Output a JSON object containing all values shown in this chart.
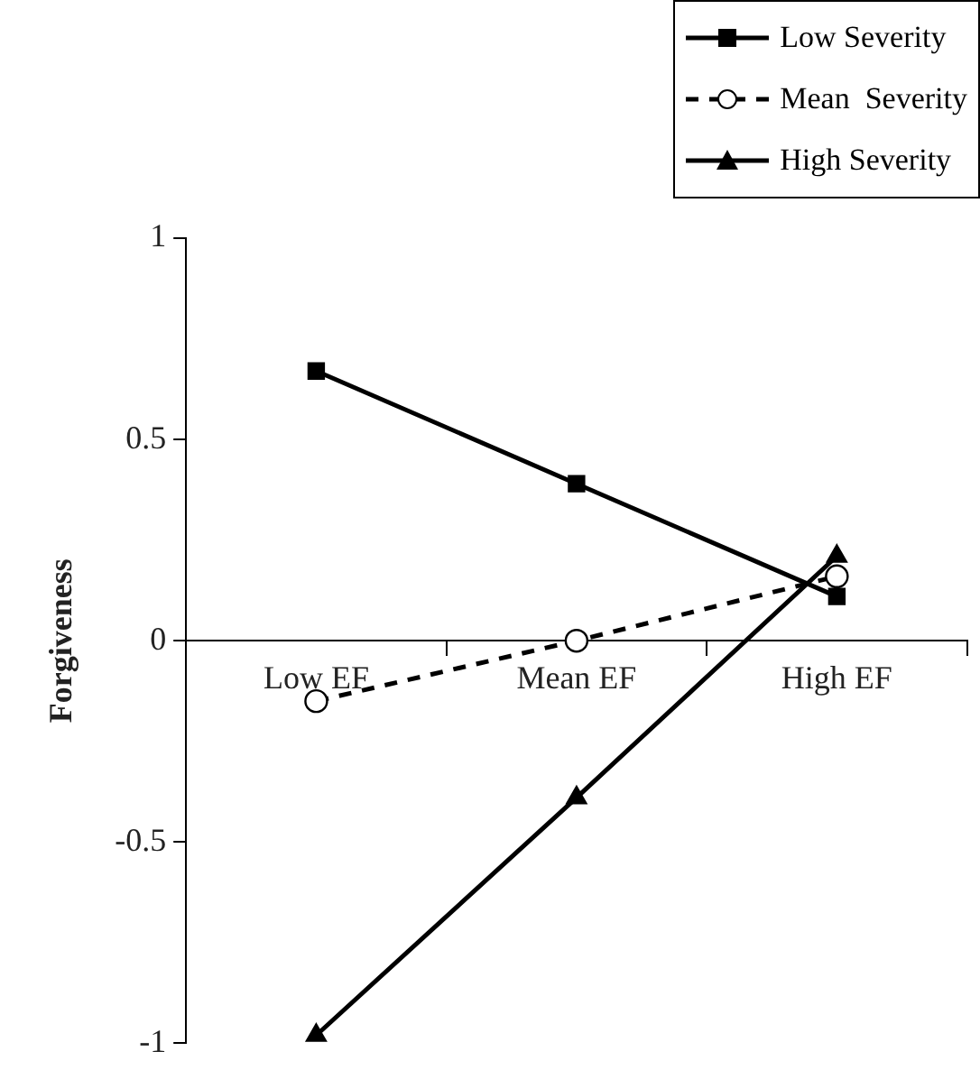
{
  "chart_data": {
    "type": "line",
    "ylabel": "Forgiveness",
    "categories": [
      "Low EF",
      "Mean EF",
      "High EF"
    ],
    "ylim": [
      -1,
      1
    ],
    "yticks": [
      -1,
      -0.5,
      0,
      0.5,
      1
    ],
    "legend": "top right",
    "series": [
      {
        "name": "Low Severity",
        "color": "#000000",
        "values": [
          0.67,
          0.39,
          0.11
        ],
        "marker": "square",
        "line_style": "solid"
      },
      {
        "name": "Mean  Severity",
        "color": "#000000",
        "values": [
          -0.15,
          0,
          0.16
        ],
        "marker": "circle",
        "line_style": "dashed"
      },
      {
        "name": "High Severity",
        "color": "#000000",
        "values": [
          -0.98,
          -0.39,
          0.21
        ],
        "marker": "triangle",
        "line_style": "solid"
      }
    ]
  }
}
